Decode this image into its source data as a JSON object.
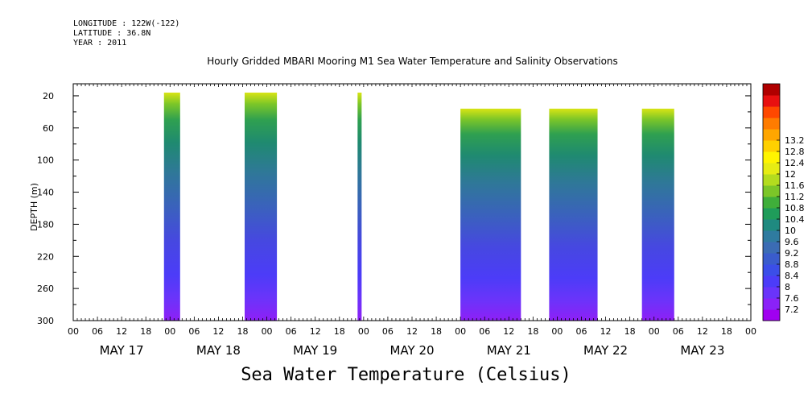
{
  "header": {
    "longitude": "LONGITUDE : 122W(-122)",
    "latitude": "LATITUDE : 36.8N",
    "year": "YEAR : 2011"
  },
  "chart_data": {
    "type": "heatmap",
    "title": "Hourly Gridded MBARI Mooring M1 Sea Water Temperature and Salinity Observations",
    "xlabel": "Sea Water Temperature (Celsius)",
    "ylabel": "DEPTH (m)",
    "x_hour_ticks": [
      "00",
      "06",
      "12",
      "18",
      "00",
      "06",
      "12",
      "18",
      "00",
      "06",
      "12",
      "18",
      "00",
      "06",
      "12",
      "18",
      "00",
      "06",
      "12",
      "18",
      "00",
      "06",
      "12",
      "18",
      "00",
      "06",
      "12",
      "18",
      "00"
    ],
    "day_labels": [
      "MAY 17",
      "MAY 18",
      "MAY 19",
      "MAY 20",
      "MAY 21",
      "MAY 22",
      "MAY 23"
    ],
    "xlim_hours": [
      0,
      168
    ],
    "ylim_depth_m": [
      300,
      5
    ],
    "y_ticks": [
      "20",
      "60",
      "100",
      "140",
      "180",
      "220",
      "260",
      "300"
    ],
    "colorbar": {
      "levels": [
        "7.2",
        "7.6",
        "8",
        "8.4",
        "8.8",
        "9.2",
        "9.6",
        "10",
        "10.4",
        "10.8",
        "11.2",
        "11.6",
        "12",
        "12.4",
        "12.8",
        "13.2"
      ],
      "colors": [
        "#a000f0",
        "#8a22f8",
        "#6a34fa",
        "#4c3cf8",
        "#3b4ee8",
        "#3a5ccc",
        "#3b6cb4",
        "#2f7ba0",
        "#1f8a80",
        "#1f9c5a",
        "#3fae3a",
        "#7cc628",
        "#b4dc1e",
        "#e6ec14",
        "#fff400",
        "#ffd000",
        "#ffa600",
        "#ff7c00",
        "#ff4800",
        "#e81010",
        "#b00000"
      ]
    },
    "data_segments_hours": [
      [
        22.5,
        26.5
      ],
      [
        42.5,
        50.5
      ],
      [
        70.5,
        71.5
      ],
      [
        96,
        111
      ],
      [
        118,
        130
      ],
      [
        141,
        149
      ]
    ],
    "segment_top_depth_m": [
      20,
      20,
      20,
      40,
      40,
      40
    ],
    "grid": false,
    "legend": "right"
  }
}
